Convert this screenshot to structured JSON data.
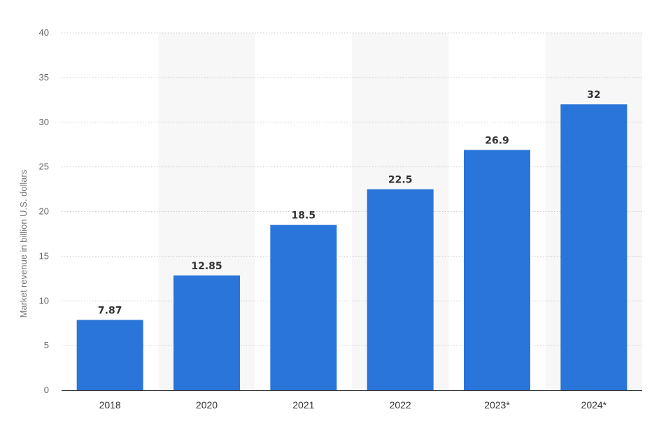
{
  "chart_data": {
    "type": "bar",
    "categories": [
      "2018",
      "2020",
      "2021",
      "2022",
      "2023*",
      "2024*"
    ],
    "values": [
      7.87,
      12.85,
      18.5,
      22.5,
      26.9,
      32
    ],
    "data_labels": [
      "7.87",
      "12.85",
      "18.5",
      "22.5",
      "26.9",
      "32"
    ],
    "title": "",
    "xlabel": "",
    "ylabel": "Market revenue in billion U.S. dollars",
    "ylim": [
      0,
      40
    ],
    "yticks": [
      0,
      5,
      10,
      15,
      20,
      25,
      30,
      35,
      40
    ],
    "ytick_labels": [
      "0",
      "5",
      "10",
      "15",
      "20",
      "25",
      "30",
      "35",
      "40"
    ],
    "grid": true,
    "legend": "none",
    "bar_color": "#2a75d9",
    "band_color": "#f7f7f7"
  }
}
